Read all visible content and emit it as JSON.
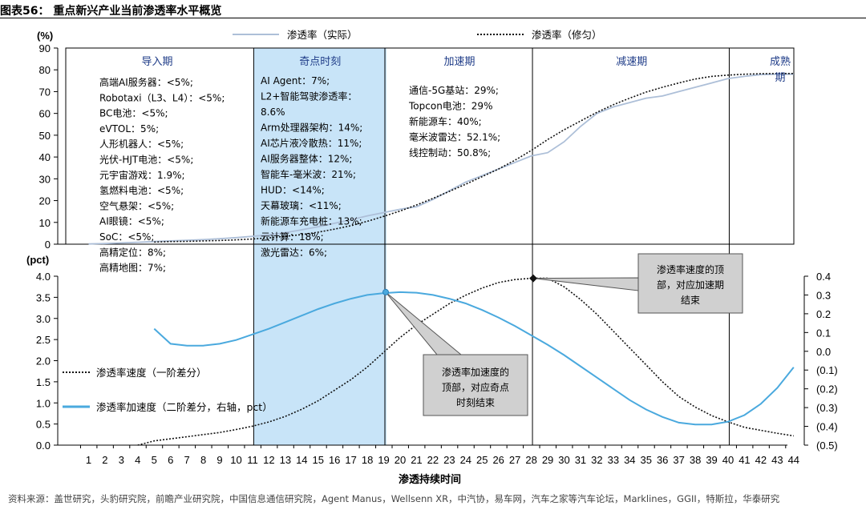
{
  "header": {
    "title": "图表56：  重点新兴产业当前渗透率水平概览"
  },
  "source": "资料来源：盖世研究，头豹研究院，前瞻产业研究院，中国信息通信研究院，Agent Manus，Wellsenn XR，中汽协，易车网，汽车之家等汽车论坛，Marklines，GGII，特斯拉，华泰研究",
  "chart_data": [
    {
      "type": "line",
      "panel": "top",
      "yunit": "(%)",
      "ylim": [
        0,
        90
      ],
      "yticks": [
        "90",
        "80",
        "70",
        "60",
        "50",
        "40",
        "30",
        "20",
        "10",
        "0"
      ],
      "x": [
        1,
        2,
        3,
        4,
        5,
        6,
        7,
        8,
        9,
        10,
        11,
        12,
        13,
        14,
        15,
        16,
        17,
        18,
        19,
        20,
        21,
        22,
        23,
        24,
        25,
        26,
        27,
        28,
        29,
        30,
        31,
        32,
        33,
        34,
        35,
        36,
        37,
        38,
        39,
        40,
        41,
        42,
        43,
        44
      ],
      "series": [
        {
          "name": "渗透率（实际）",
          "color": "#adbfd8",
          "style": "solid",
          "values": [
            0.1,
            0.3,
            0.6,
            0.9,
            1.2,
            1.5,
            1.8,
            2.1,
            2.5,
            3.0,
            3.6,
            4.3,
            5.3,
            6.6,
            8.0,
            9.6,
            11.2,
            13.0,
            14.5,
            16.0,
            17.2,
            20.5,
            24.5,
            28.5,
            31.5,
            34.5,
            37.5,
            40.5,
            42.0,
            47.0,
            54.0,
            60.0,
            63.0,
            65.0,
            67.0,
            68.0,
            70.0,
            72.0,
            74.0,
            76.0,
            77.0,
            77.8,
            78.0,
            78.0
          ]
        },
        {
          "name": "渗透率（修匀）",
          "color": "#111111",
          "style": "dotted",
          "values": [
            null,
            null,
            null,
            null,
            1.0,
            1.2,
            1.3,
            1.5,
            1.7,
            2.0,
            2.4,
            2.9,
            3.6,
            4.4,
            5.5,
            6.9,
            8.5,
            10.5,
            12.8,
            15.2,
            18.0,
            21.0,
            24.2,
            27.5,
            31.0,
            34.5,
            38.5,
            43.0,
            48.0,
            52.5,
            56.5,
            60.5,
            64.0,
            67.0,
            69.8,
            72.0,
            74.0,
            75.8,
            77.0,
            77.6,
            78.0,
            78.2,
            78.3,
            78.3
          ]
        }
      ],
      "phases": [
        {
          "label": "导入期",
          "from": 1,
          "to": 12,
          "shaded": false
        },
        {
          "label": "奇点时刻",
          "from": 12,
          "to": 20,
          "shaded": true
        },
        {
          "label": "加速期",
          "from": 20,
          "to": 29,
          "shaded": false
        },
        {
          "label": "减速期",
          "from": 29,
          "to": 41,
          "shaded": false
        },
        {
          "label": "成熟期",
          "from": 41,
          "to": 44,
          "shaded": false
        }
      ],
      "annotations": {
        "intro": [
          "高端AI服务器：<5%;",
          "Robotaxi（L3、L4）：<5%;",
          "BC电池：<5%;",
          "eVTOL：5%;",
          "人形机器人：<5%;",
          "光伏-HJT电池：<5%;",
          "元宇宙游戏：1.9%;",
          "氢燃料电池：<5%;",
          "空气悬架：<5%;",
          "AI眼镜：<5%;",
          "SoC：<5%;",
          "高精定位：8%;",
          "高精地图：7%;"
        ],
        "singularity": [
          "AI Agent：7%;",
          "L2+智能驾驶渗透率：",
          "8.6%",
          "Arm处理器架构：14%;",
          "AI芯片液冷散热：11%;",
          "AI服务器整体：12%;",
          "智能车-毫米波：21%;",
          "HUD：<14%;",
          "天幕玻璃：<11%;",
          "新能源车充电桩：13%;",
          "云计算：18%;",
          "激光雷达：6%;"
        ],
        "acceleration": [
          "通信-5G基站：29%;",
          "Topcon电池：29%",
          "新能源车：40%;",
          "毫米波雷达：52.1%;",
          "线控制动：50.8%;"
        ]
      }
    },
    {
      "type": "line",
      "panel": "bottom",
      "yunit": "(pct)",
      "ylim": [
        0,
        4.0
      ],
      "yticks": [
        "4.0",
        "3.5",
        "3.0",
        "2.5",
        "2.0",
        "1.5",
        "1.0",
        "0.5",
        "0.0"
      ],
      "y2lim": [
        -0.5,
        0.4
      ],
      "y2ticks": [
        "0.4",
        "0.3",
        "0.2",
        "0.1",
        "0.0",
        "(0.1)",
        "(0.2)",
        "(0.3)",
        "(0.4)",
        "(0.5)"
      ],
      "xlabel": "渗透持续时间",
      "x": [
        1,
        2,
        3,
        4,
        5,
        6,
        7,
        8,
        9,
        10,
        11,
        12,
        13,
        14,
        15,
        16,
        17,
        18,
        19,
        20,
        21,
        22,
        23,
        24,
        25,
        26,
        27,
        28,
        29,
        30,
        31,
        32,
        33,
        34,
        35,
        36,
        37,
        38,
        39,
        40,
        41,
        42,
        43,
        44
      ],
      "series": [
        {
          "name": "渗透率速度（一阶差分）",
          "axis": "left",
          "color": "#111111",
          "style": "dotted",
          "values": [
            null,
            null,
            null,
            0.0,
            0.1,
            0.15,
            0.2,
            0.25,
            0.3,
            0.37,
            0.45,
            0.55,
            0.68,
            0.85,
            1.05,
            1.3,
            1.55,
            1.85,
            2.2,
            2.55,
            2.85,
            3.1,
            3.35,
            3.55,
            3.72,
            3.85,
            3.92,
            3.95,
            3.95,
            3.75,
            3.45,
            3.1,
            2.7,
            2.3,
            1.9,
            1.5,
            1.15,
            0.9,
            0.7,
            0.55,
            0.42,
            0.35,
            0.28,
            0.22
          ]
        },
        {
          "name": "渗透率加速度（二阶差分，右轴，pct）",
          "axis": "right",
          "color": "#4aa9de",
          "style": "solid",
          "values": [
            null,
            null,
            null,
            null,
            0.12,
            0.04,
            0.03,
            0.03,
            0.04,
            0.06,
            0.09,
            0.12,
            0.155,
            0.19,
            0.225,
            0.255,
            0.28,
            0.3,
            0.31,
            0.315,
            0.312,
            0.3,
            0.28,
            0.255,
            0.22,
            0.18,
            0.135,
            0.085,
            0.035,
            -0.02,
            -0.08,
            -0.14,
            -0.2,
            -0.26,
            -0.31,
            -0.35,
            -0.38,
            -0.39,
            -0.39,
            -0.375,
            -0.34,
            -0.28,
            -0.195,
            -0.085
          ]
        }
      ],
      "legend_position": "left",
      "callouts": [
        {
          "lines": [
            "渗透率加速度的",
            "顶部，对应奇点",
            "时刻结束"
          ],
          "x": 20
        },
        {
          "lines": [
            "渗透率速度的顶",
            "部，对应加速期",
            "结束"
          ],
          "x": 29
        }
      ]
    }
  ]
}
